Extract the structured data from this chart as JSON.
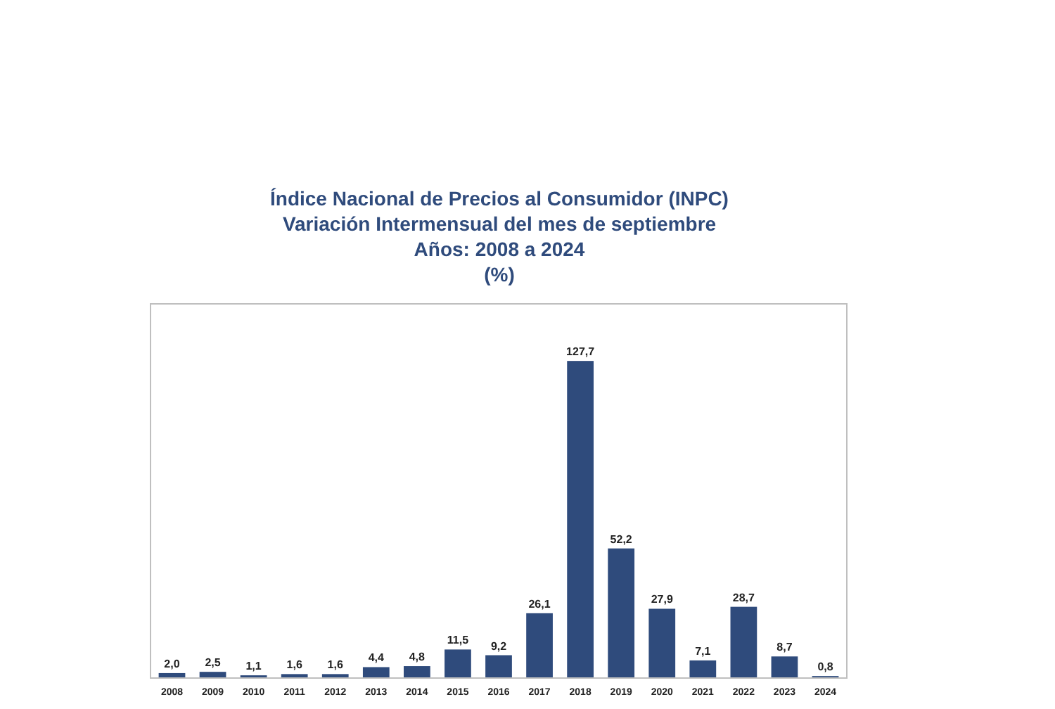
{
  "chart_data": {
    "type": "bar",
    "title": "Índice Nacional de Precios al Consumidor (INPC)\nVariación Intermensual del mes de septiembre\nAños: 2008 a 2024\n(%)",
    "categories": [
      "2008",
      "2009",
      "2010",
      "2011",
      "2012",
      "2013",
      "2014",
      "2015",
      "2016",
      "2017",
      "2018",
      "2019",
      "2020",
      "2021",
      "2022",
      "2023",
      "2024"
    ],
    "values": [
      2.0,
      2.5,
      1.1,
      1.6,
      1.6,
      4.4,
      4.8,
      11.5,
      9.2,
      26.1,
      127.7,
      52.2,
      27.9,
      7.1,
      28.7,
      8.7,
      0.8
    ],
    "value_labels": [
      "2,0",
      "2,5",
      "1,1",
      "1,6",
      "1,6",
      "4,4",
      "4,8",
      "11,5",
      "9,2",
      "26,1",
      "127,7",
      "52,2",
      "27,9",
      "7,1",
      "28,7",
      "8,7",
      "0,8"
    ],
    "color": "#2f4b7c"
  }
}
